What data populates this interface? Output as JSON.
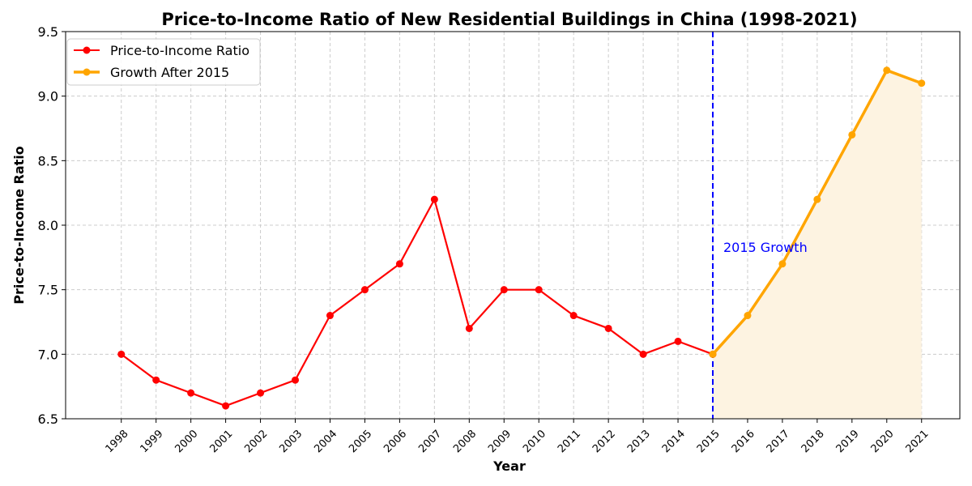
{
  "chart_data": {
    "type": "line",
    "title": "Price-to-Income Ratio of New Residential Buildings in China (1998-2021)",
    "xlabel": "Year",
    "ylabel": "Price-to-Income Ratio",
    "ylim": [
      6.5,
      9.5
    ],
    "yticks": [
      "6.5",
      "7.0",
      "7.5",
      "8.0",
      "8.5",
      "9.0",
      "9.5"
    ],
    "x": [
      "1998",
      "1999",
      "2000",
      "2001",
      "2002",
      "2003",
      "2004",
      "2005",
      "2006",
      "2007",
      "2008",
      "2009",
      "2010",
      "2011",
      "2012",
      "2013",
      "2014",
      "2015",
      "2016",
      "2017",
      "2018",
      "2019",
      "2020",
      "2021"
    ],
    "grid": true,
    "legend_position": "upper-left",
    "series": [
      {
        "name": "Price-to-Income Ratio",
        "color": "#ff0000",
        "x": [
          "1998",
          "1999",
          "2000",
          "2001",
          "2002",
          "2003",
          "2004",
          "2005",
          "2006",
          "2007",
          "2008",
          "2009",
          "2010",
          "2011",
          "2012",
          "2013",
          "2014",
          "2015"
        ],
        "values": [
          7.0,
          6.8,
          6.7,
          6.6,
          6.7,
          6.8,
          7.3,
          7.5,
          7.7,
          8.2,
          7.2,
          7.5,
          7.5,
          7.3,
          7.2,
          7.0,
          7.1,
          7.0
        ]
      },
      {
        "name": "Growth After 2015",
        "color": "#ffa500",
        "x": [
          "2015",
          "2016",
          "2017",
          "2018",
          "2019",
          "2020",
          "2021"
        ],
        "values": [
          7.0,
          7.3,
          7.7,
          8.2,
          8.7,
          9.2,
          9.1
        ],
        "fill_below": true,
        "fill_color": "#fdf3e1"
      }
    ],
    "vline": {
      "x": "2015",
      "color": "#0000ff",
      "style": "dashed"
    },
    "annotation": {
      "text": "2015 Growth",
      "x": "2015.5",
      "y": 7.8,
      "color": "#0000ff"
    }
  }
}
